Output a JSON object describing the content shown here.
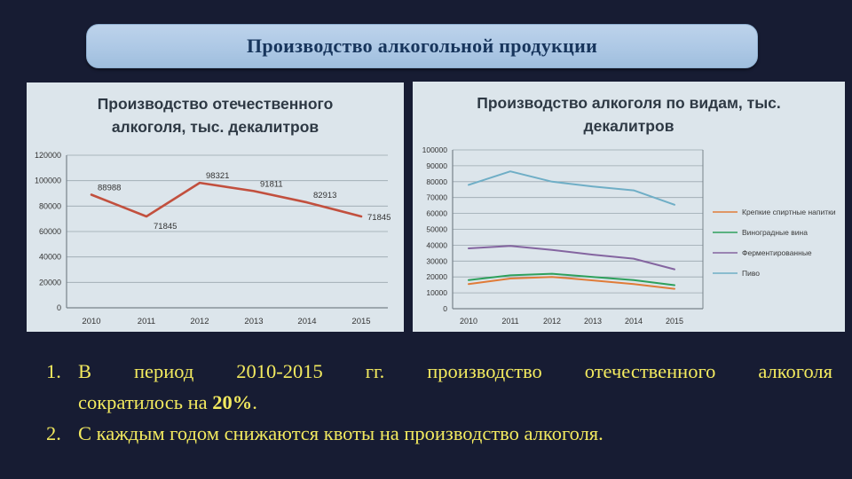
{
  "slide": {
    "title": "Производство алкогольной продукции",
    "background_color": "#171C33",
    "panel_color": "#DCE5EB",
    "title_box_color": "#ADC8E5",
    "notes_color": "#F3EA5F",
    "notes": [
      {
        "number": "1.",
        "line1": "В период 2010-2015 гг. производство отечественного алкоголя",
        "line2_pre": "сократилось  на ",
        "line2_bold": "20%",
        "line2_post": "."
      },
      {
        "number": "2.",
        "text": "С каждым годом снижаются квоты на производство алкоголя."
      }
    ]
  },
  "chart_data": [
    {
      "type": "line",
      "title": "Производство отечественного алкоголя, тыс. декалитров",
      "xlabel": "",
      "ylabel": "",
      "categories": [
        "2010",
        "2011",
        "2012",
        "2013",
        "2014",
        "2015"
      ],
      "series": [
        {
          "name": "Производство отечественного алкоголя",
          "color": "#C2503E",
          "values": [
            88988,
            71845,
            98321,
            91811,
            82913,
            71845
          ],
          "show_labels": true
        }
      ],
      "ylim": [
        0,
        120000
      ],
      "ytick_step": 20000,
      "grid": true,
      "legend": "none"
    },
    {
      "type": "line",
      "title": "Производство алкоголя по видам, тыс. декалитров",
      "xlabel": "",
      "ylabel": "",
      "categories": [
        "2010",
        "2011",
        "2012",
        "2013",
        "2014",
        "2015"
      ],
      "series": [
        {
          "name": "Крепкие спиртные напитки",
          "color": "#E07C39",
          "values": [
            15500,
            19000,
            20000,
            17800,
            15500,
            12500
          ]
        },
        {
          "name": "Виноградные вина",
          "color": "#2EA05C",
          "values": [
            18000,
            21000,
            22000,
            20000,
            18000,
            14800
          ]
        },
        {
          "name": "Ферментированные",
          "color": "#8465A0",
          "values": [
            38000,
            39500,
            37000,
            34000,
            31500,
            24800
          ]
        },
        {
          "name": "Пиво",
          "color": "#6FAEC6",
          "values": [
            78000,
            86500,
            80000,
            77000,
            74500,
            65500
          ]
        }
      ],
      "ylim": [
        0,
        100000
      ],
      "ytick_step": 10000,
      "grid": true,
      "legend": "right"
    }
  ]
}
